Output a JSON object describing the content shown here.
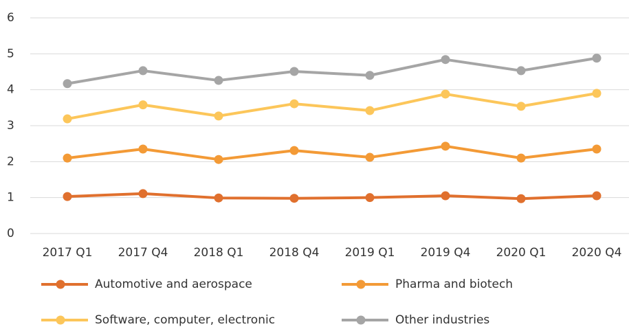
{
  "chart_data": {
    "type": "line",
    "categories": [
      "2017 Q1",
      "2017 Q4",
      "2018 Q1",
      "2018 Q4",
      "2019 Q1",
      "2019 Q4",
      "2020 Q1",
      "2020 Q4"
    ],
    "series": [
      {
        "name": "Automotive and aerospace",
        "color": "#e0702e",
        "values": [
          1.03,
          1.11,
          0.99,
          0.98,
          1.0,
          1.05,
          0.97,
          1.05
        ]
      },
      {
        "name": "Pharma and biotech",
        "color": "#f39a36",
        "values": [
          2.1,
          2.35,
          2.06,
          2.31,
          2.12,
          2.43,
          2.1,
          2.35
        ]
      },
      {
        "name": "Software, computer, electronic",
        "color": "#fcc65a",
        "values": [
          3.19,
          3.58,
          3.27,
          3.61,
          3.42,
          3.88,
          3.54,
          3.9
        ]
      },
      {
        "name": "Other industries",
        "color": "#a5a5a5",
        "values": [
          4.17,
          4.53,
          4.26,
          4.51,
          4.4,
          4.84,
          4.53,
          4.88
        ]
      }
    ],
    "ylim": [
      0,
      6
    ],
    "yticks": [
      0,
      1,
      2,
      3,
      4,
      5,
      6
    ],
    "grid": true
  }
}
